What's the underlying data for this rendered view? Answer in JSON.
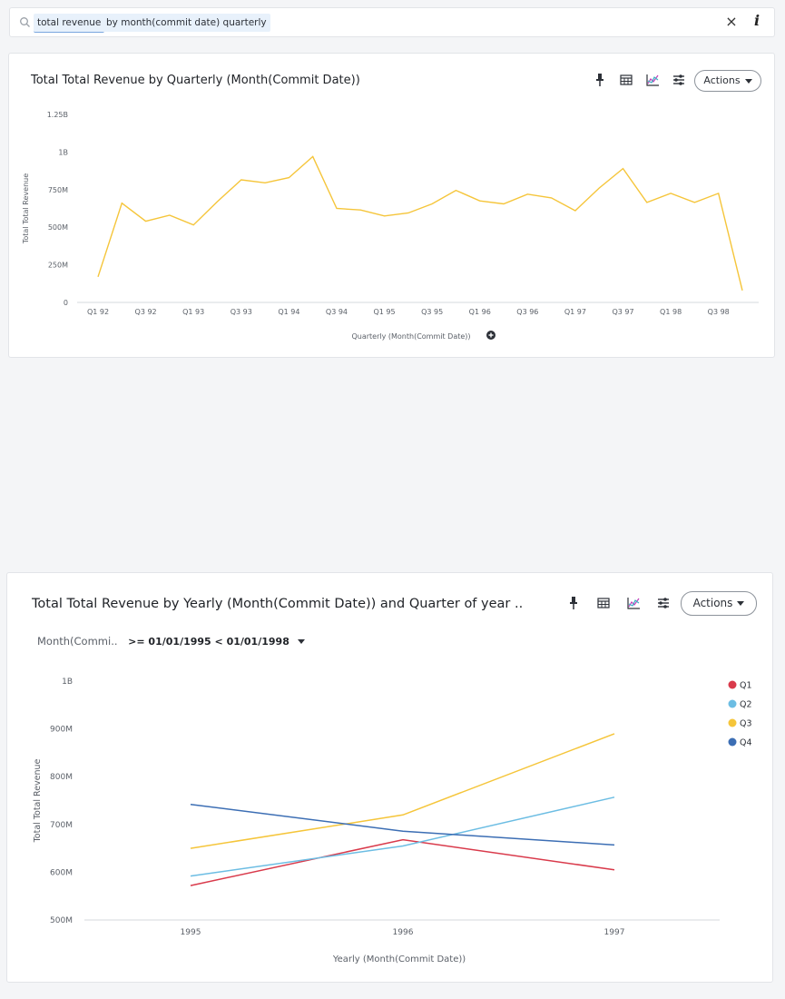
{
  "search": {
    "tokens": [
      "total revenue",
      "by month(commit date) quarterly"
    ],
    "clear_label": "×",
    "info_label": "i"
  },
  "toolbar": {
    "icons": [
      "pin-icon",
      "table-icon",
      "chart-icon",
      "settings-icon"
    ],
    "actions_label": "Actions"
  },
  "colors": {
    "line1": "#f5c53a",
    "Q1": "#d93a4b",
    "Q2": "#6cbde3",
    "Q3": "#f5c53a",
    "Q4": "#3c6eb4",
    "grid": "#e6e7ea"
  },
  "filter": {
    "field": "Month(Commi..",
    "value": ">= 01/01/1995 < 01/01/1998"
  },
  "chart_data": [
    {
      "type": "line",
      "title": "Total Total Revenue by Quarterly (Month(Commit Date))",
      "xlabel": "Quarterly (Month(Commit Date))",
      "ylabel": "Total Total Revenue",
      "ylim": [
        0,
        1250000000
      ],
      "y_ticks": [
        "0",
        "250M",
        "500M",
        "750M",
        "1B",
        "1.25B"
      ],
      "x_ticks": [
        "Q1 92",
        "Q3 92",
        "Q1 93",
        "Q3 93",
        "Q1 94",
        "Q3 94",
        "Q1 95",
        "Q3 95",
        "Q1 96",
        "Q3 96",
        "Q1 97",
        "Q3 97",
        "Q1 98",
        "Q3 98"
      ],
      "categories": [
        "Q1 92",
        "Q2 92",
        "Q3 92",
        "Q4 92",
        "Q1 93",
        "Q2 93",
        "Q3 93",
        "Q4 93",
        "Q1 94",
        "Q2 94",
        "Q3 94",
        "Q4 94",
        "Q1 95",
        "Q2 95",
        "Q3 95",
        "Q4 95",
        "Q1 96",
        "Q2 96",
        "Q3 96",
        "Q4 96",
        "Q1 97",
        "Q2 97",
        "Q3 97",
        "Q4 97",
        "Q1 98",
        "Q2 98",
        "Q3 98",
        "Q4 98"
      ],
      "values": [
        170000000,
        660000000,
        540000000,
        580000000,
        515000000,
        670000000,
        815000000,
        795000000,
        830000000,
        970000000,
        625000000,
        615000000,
        575000000,
        595000000,
        655000000,
        745000000,
        675000000,
        655000000,
        720000000,
        695000000,
        610000000,
        760000000,
        890000000,
        665000000,
        725000000,
        665000000,
        725000000,
        80000000
      ],
      "grid": false,
      "legend": "none"
    },
    {
      "type": "line",
      "title": "Total Total Revenue by Yearly (Month(Commit Date)) and Quarter of year ..",
      "xlabel": "Yearly (Month(Commit Date))",
      "ylabel": "Total Total Revenue",
      "ylim": [
        500000000,
        1000000000
      ],
      "y_ticks": [
        "500M",
        "600M",
        "700M",
        "800M",
        "900M",
        "1B"
      ],
      "x": [
        "1995",
        "1996",
        "1997"
      ],
      "series": [
        {
          "name": "Q1",
          "values": [
            572000000,
            668000000,
            605000000
          ]
        },
        {
          "name": "Q2",
          "values": [
            592000000,
            655000000,
            757000000
          ]
        },
        {
          "name": "Q3",
          "values": [
            650000000,
            720000000,
            890000000
          ]
        },
        {
          "name": "Q4",
          "values": [
            742000000,
            686000000,
            657000000
          ]
        }
      ],
      "grid": false,
      "legend": "right"
    }
  ]
}
